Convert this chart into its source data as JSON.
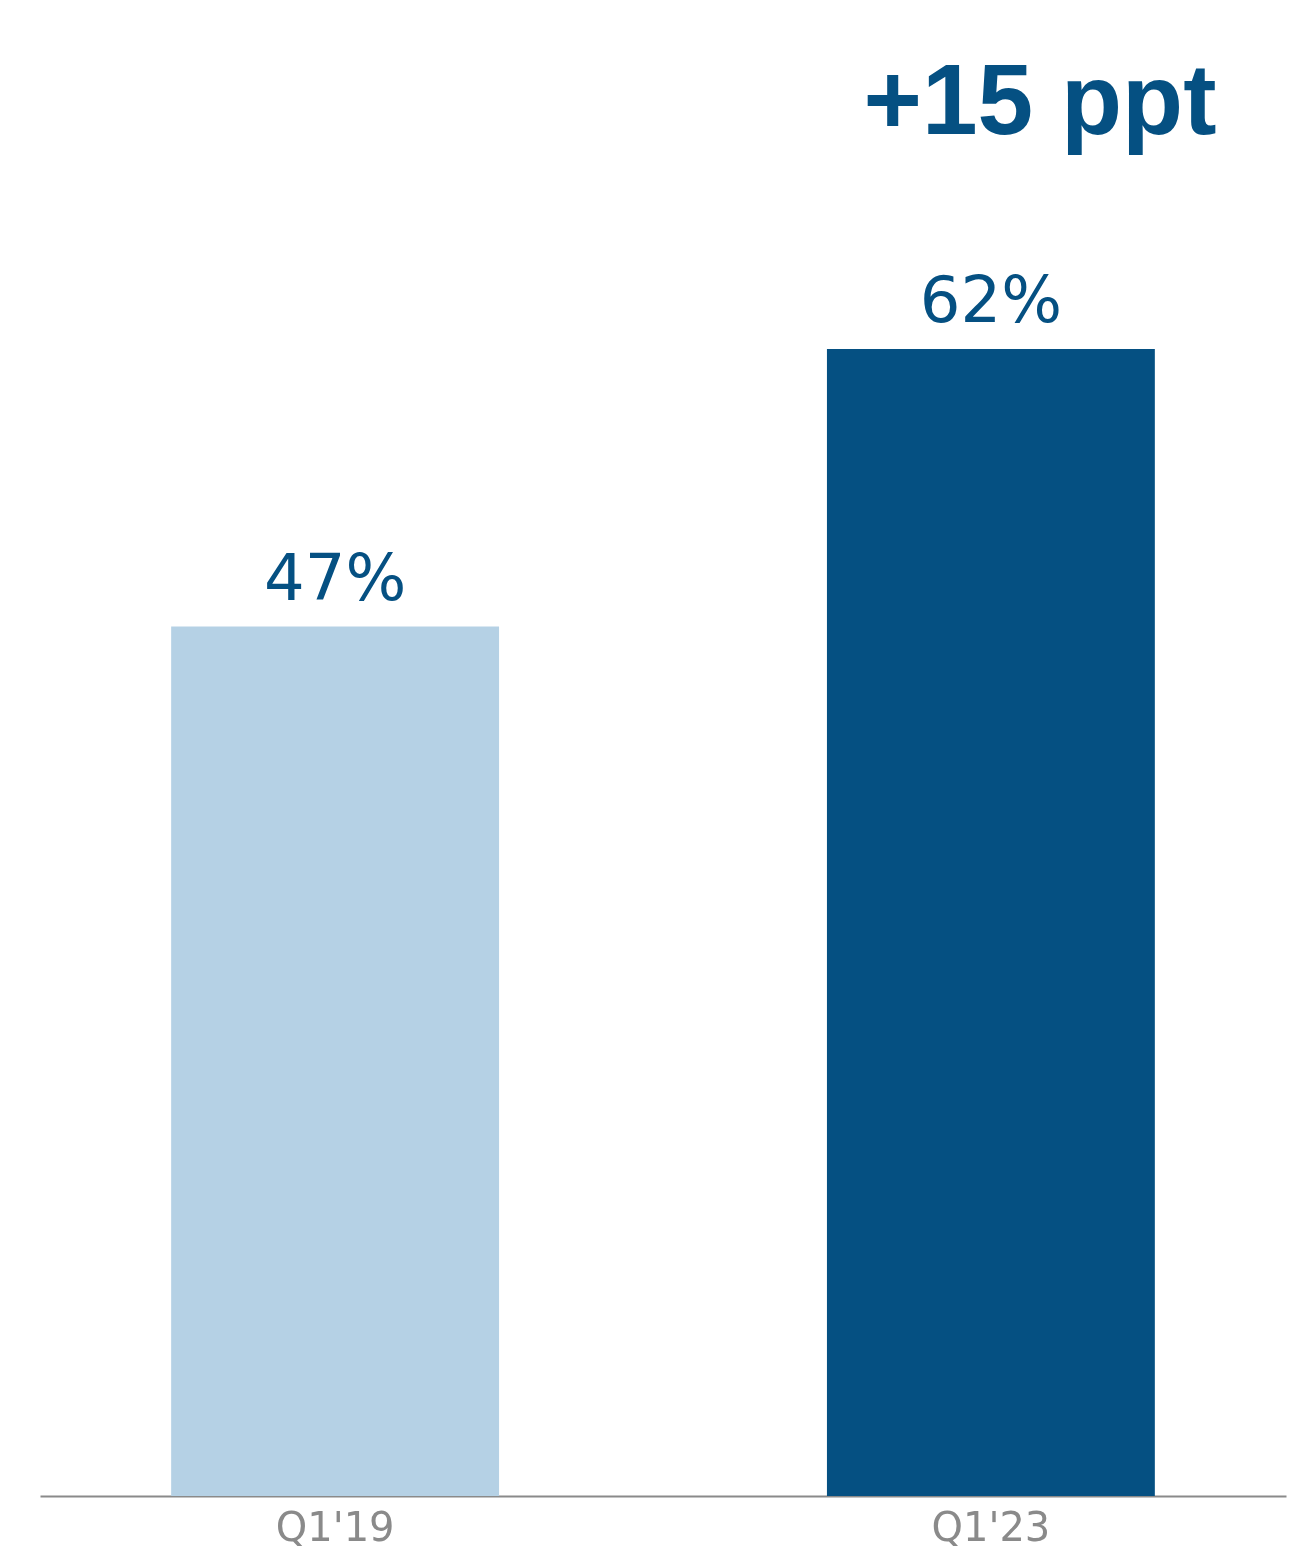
{
  "chart_data": {
    "type": "bar",
    "categories": [
      "Q1'19",
      "Q1'23"
    ],
    "values": [
      47,
      62
    ],
    "colors": [
      "#b5d1e5",
      "#055082"
    ],
    "data_labels": true,
    "value_labels": [
      "47%",
      "62%"
    ],
    "annotations": [
      "+15 ppt"
    ],
    "grid": false,
    "tick_labels": "x"
  }
}
